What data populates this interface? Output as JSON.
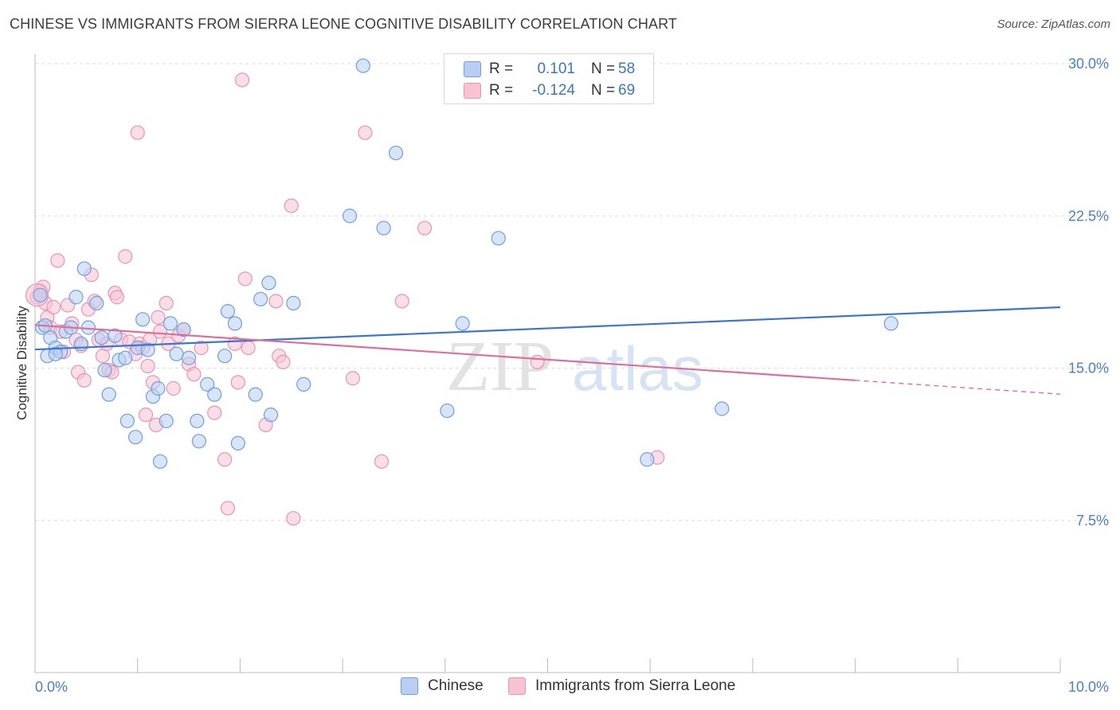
{
  "title": "CHINESE VS IMMIGRANTS FROM SIERRA LEONE COGNITIVE DISABILITY CORRELATION CHART",
  "source": "Source: ZipAtlas.com",
  "watermark": {
    "zip": "ZIP",
    "atlas": "atlas"
  },
  "legend": {
    "rows": [
      {
        "r_label": "R =",
        "r_value": "0.101",
        "n_label": "N =",
        "n_value": "58"
      },
      {
        "r_label": "R =",
        "r_value": "-0.124",
        "n_label": "N =",
        "n_value": "69"
      }
    ]
  },
  "bottom_legend": {
    "chinese": "Chinese",
    "sierra": "Immigrants from Sierra Leone"
  },
  "colors": {
    "chinese_fill": "#b8cff3",
    "chinese_stroke": "#6f9fe0",
    "chinese_line": "#3a76d0",
    "sierra_fill": "#f6c3d3",
    "sierra_stroke": "#ea94b2",
    "sierra_line": "#e06e9a",
    "grid": "#dddddd",
    "tick_text": "#4a7fd0"
  },
  "chart_data": {
    "type": "scatter",
    "title": "CHINESE VS IMMIGRANTS FROM SIERRA LEONE COGNITIVE DISABILITY CORRELATION CHART",
    "xlabel": "",
    "ylabel": "Cognitive Disability",
    "xlim": [
      0,
      10
    ],
    "ylim": [
      0,
      30
    ],
    "x_tick_labels": [
      "0.0%",
      "10.0%"
    ],
    "y_ticks": [
      7.5,
      15.0,
      22.5,
      30.0
    ],
    "y_tick_labels": [
      "7.5%",
      "15.0%",
      "22.5%",
      "30.0%"
    ],
    "grid": true,
    "legend_position": "top-center",
    "series": [
      {
        "name": "Chinese",
        "r": 0.101,
        "n": 58,
        "trend": {
          "x": [
            0,
            10
          ],
          "y": [
            15.92,
            18.0
          ]
        },
        "points": [
          [
            0.05,
            18.6
          ],
          [
            0.07,
            17.0
          ],
          [
            0.12,
            15.6
          ],
          [
            0.15,
            16.5
          ],
          [
            0.2,
            16.0
          ],
          [
            0.25,
            15.8
          ],
          [
            0.3,
            16.8
          ],
          [
            0.35,
            17.0
          ],
          [
            0.4,
            18.5
          ],
          [
            0.45,
            16.2
          ],
          [
            0.48,
            19.9
          ],
          [
            0.52,
            17.0
          ],
          [
            0.6,
            18.2
          ],
          [
            0.65,
            16.5
          ],
          [
            0.68,
            14.9
          ],
          [
            0.72,
            13.7
          ],
          [
            0.78,
            16.6
          ],
          [
            0.82,
            15.4
          ],
          [
            0.88,
            15.5
          ],
          [
            0.9,
            12.4
          ],
          [
            0.98,
            11.6
          ],
          [
            1.0,
            16.0
          ],
          [
            1.05,
            17.4
          ],
          [
            1.1,
            15.9
          ],
          [
            1.15,
            13.6
          ],
          [
            1.2,
            14.0
          ],
          [
            1.22,
            10.4
          ],
          [
            1.28,
            12.4
          ],
          [
            1.32,
            17.2
          ],
          [
            1.38,
            15.7
          ],
          [
            1.45,
            16.9
          ],
          [
            1.5,
            15.5
          ],
          [
            1.58,
            12.4
          ],
          [
            1.6,
            11.4
          ],
          [
            1.68,
            14.2
          ],
          [
            1.75,
            13.7
          ],
          [
            1.85,
            15.6
          ],
          [
            1.88,
            17.8
          ],
          [
            1.95,
            17.2
          ],
          [
            1.98,
            11.3
          ],
          [
            2.15,
            13.7
          ],
          [
            2.2,
            18.4
          ],
          [
            2.28,
            19.2
          ],
          [
            2.3,
            12.7
          ],
          [
            2.52,
            18.2
          ],
          [
            2.62,
            14.2
          ],
          [
            3.07,
            22.5
          ],
          [
            3.2,
            29.9
          ],
          [
            3.4,
            21.9
          ],
          [
            3.52,
            25.6
          ],
          [
            4.02,
            12.9
          ],
          [
            4.17,
            17.2
          ],
          [
            4.52,
            21.4
          ],
          [
            5.97,
            10.5
          ],
          [
            6.7,
            13.0
          ],
          [
            8.35,
            17.2
          ],
          [
            0.1,
            17.1
          ],
          [
            0.2,
            15.7
          ]
        ]
      },
      {
        "name": "Immigrants from Sierra Leone",
        "r": -0.124,
        "n": 69,
        "trend": {
          "x": [
            0,
            8.0
          ],
          "y": [
            17.12,
            14.4
          ]
        },
        "trend_dashed": {
          "x": [
            8.0,
            10
          ],
          "y": [
            14.4,
            13.72
          ]
        },
        "points": [
          [
            0.02,
            18.5
          ],
          [
            0.05,
            18.8
          ],
          [
            0.08,
            19.0
          ],
          [
            0.1,
            18.2
          ],
          [
            0.12,
            17.5
          ],
          [
            0.15,
            17.0
          ],
          [
            0.18,
            18.0
          ],
          [
            0.22,
            20.3
          ],
          [
            0.25,
            16.8
          ],
          [
            0.28,
            15.8
          ],
          [
            0.32,
            18.1
          ],
          [
            0.36,
            17.2
          ],
          [
            0.4,
            16.4
          ],
          [
            0.42,
            14.8
          ],
          [
            0.45,
            16.1
          ],
          [
            0.48,
            14.4
          ],
          [
            0.52,
            17.9
          ],
          [
            0.55,
            19.6
          ],
          [
            0.58,
            18.3
          ],
          [
            0.62,
            16.4
          ],
          [
            0.66,
            15.6
          ],
          [
            0.7,
            16.2
          ],
          [
            0.72,
            14.9
          ],
          [
            0.75,
            14.8
          ],
          [
            0.78,
            18.7
          ],
          [
            0.8,
            18.5
          ],
          [
            0.84,
            16.4
          ],
          [
            0.88,
            20.5
          ],
          [
            0.92,
            16.3
          ],
          [
            0.98,
            15.7
          ],
          [
            1.0,
            26.6
          ],
          [
            1.02,
            16.2
          ],
          [
            1.05,
            16.0
          ],
          [
            1.08,
            12.7
          ],
          [
            1.1,
            15.1
          ],
          [
            1.12,
            16.4
          ],
          [
            1.15,
            14.3
          ],
          [
            1.18,
            12.2
          ],
          [
            1.2,
            17.5
          ],
          [
            1.22,
            16.8
          ],
          [
            1.28,
            18.2
          ],
          [
            1.3,
            16.2
          ],
          [
            1.35,
            14.0
          ],
          [
            1.4,
            16.6
          ],
          [
            1.45,
            16.9
          ],
          [
            1.5,
            15.2
          ],
          [
            1.55,
            14.7
          ],
          [
            1.62,
            16.0
          ],
          [
            1.75,
            12.8
          ],
          [
            1.85,
            10.5
          ],
          [
            1.88,
            8.1
          ],
          [
            1.95,
            16.2
          ],
          [
            1.98,
            14.3
          ],
          [
            2.02,
            29.2
          ],
          [
            2.05,
            19.4
          ],
          [
            2.08,
            16.0
          ],
          [
            2.25,
            12.2
          ],
          [
            2.35,
            18.3
          ],
          [
            2.38,
            15.6
          ],
          [
            2.42,
            15.3
          ],
          [
            2.5,
            23.0
          ],
          [
            2.52,
            7.6
          ],
          [
            3.1,
            14.5
          ],
          [
            3.22,
            26.6
          ],
          [
            3.38,
            10.4
          ],
          [
            3.58,
            18.3
          ],
          [
            3.8,
            21.9
          ],
          [
            4.9,
            15.3
          ],
          [
            6.07,
            10.6
          ]
        ]
      }
    ]
  }
}
